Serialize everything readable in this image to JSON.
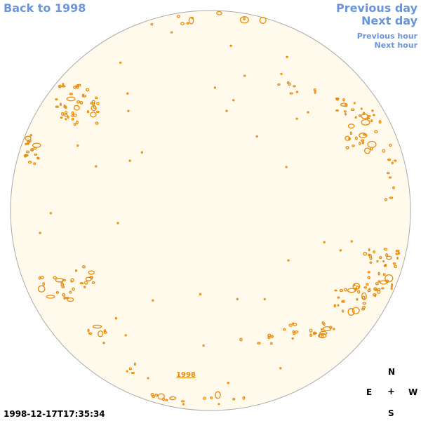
{
  "nav": {
    "back": "Back to 1998",
    "previous_day": "Previous day",
    "next_day": "Next day",
    "previous_hour": "Previous hour",
    "next_hour": "Next hour"
  },
  "year_label": "1998",
  "timestamp": "1998-12-17T17:35:34",
  "compass": {
    "north": "N",
    "east": "E",
    "center": "+",
    "west": "W",
    "south": "S"
  },
  "colors": {
    "disk_fill": "#fffaeb",
    "disk_border": "#aaaaaa",
    "contour": "#e88a0c",
    "nav": "#6b95d8"
  }
}
